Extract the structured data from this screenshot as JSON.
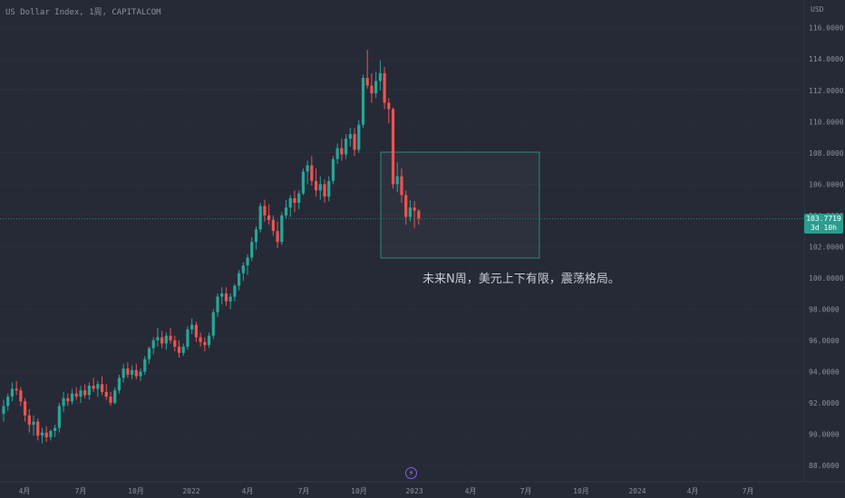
{
  "header": {
    "title": "US Dollar Index, 1周, CAPITALCOM"
  },
  "price_axis": {
    "currency": "USD"
  },
  "last_price": {
    "value": "103.7719",
    "countdown": "3d 10h"
  },
  "annotation": {
    "text": "未来N周，美元上下有限，震荡格局。"
  },
  "event_icon": {
    "name": "flash-icon",
    "glyph": "⚡"
  },
  "colors": {
    "up": "#26a69a",
    "down": "#ef5350",
    "background": "#262a36",
    "box": "#2a9d8f",
    "badge": "#2a9d8f"
  },
  "chart_data": {
    "type": "candlestick",
    "title": "US Dollar Index, 1周, CAPITALCOM",
    "ylabel": "USD",
    "ylim": [
      87.4,
      117.0
    ],
    "y_ticks": [
      "88.0000",
      "90.0000",
      "92.0000",
      "94.0000",
      "96.0000",
      "98.0000",
      "100.0000",
      "102.0000",
      "104.0000",
      "106.0000",
      "108.0000",
      "110.0000",
      "112.0000",
      "114.0000",
      "116.0000"
    ],
    "x_ticks": [
      "4月",
      "7月",
      "10月",
      "2022",
      "4月",
      "7月",
      "10月",
      "2023",
      "4月",
      "7月",
      "10月",
      "2024",
      "4月",
      "7月"
    ],
    "current_price": 103.7719,
    "candles": [
      {
        "o": 91.3,
        "h": 92.2,
        "l": 90.8,
        "c": 91.8
      },
      {
        "o": 91.8,
        "h": 92.6,
        "l": 91.5,
        "c": 92.4
      },
      {
        "o": 92.4,
        "h": 93.3,
        "l": 92.1,
        "c": 92.9
      },
      {
        "o": 92.9,
        "h": 93.4,
        "l": 92.5,
        "c": 92.8
      },
      {
        "o": 92.8,
        "h": 93.0,
        "l": 91.8,
        "c": 92.1
      },
      {
        "o": 92.1,
        "h": 92.3,
        "l": 90.8,
        "c": 91.2
      },
      {
        "o": 91.2,
        "h": 91.6,
        "l": 90.1,
        "c": 90.6
      },
      {
        "o": 90.6,
        "h": 91.2,
        "l": 89.9,
        "c": 90.8
      },
      {
        "o": 90.8,
        "h": 91.0,
        "l": 89.6,
        "c": 89.9
      },
      {
        "o": 89.9,
        "h": 90.4,
        "l": 89.4,
        "c": 90.1
      },
      {
        "o": 90.1,
        "h": 90.5,
        "l": 89.5,
        "c": 89.8
      },
      {
        "o": 89.8,
        "h": 90.3,
        "l": 89.6,
        "c": 90.2
      },
      {
        "o": 90.2,
        "h": 90.6,
        "l": 89.8,
        "c": 90.4
      },
      {
        "o": 90.4,
        "h": 92.0,
        "l": 90.1,
        "c": 91.8
      },
      {
        "o": 91.8,
        "h": 92.7,
        "l": 91.4,
        "c": 92.3
      },
      {
        "o": 92.3,
        "h": 92.6,
        "l": 91.8,
        "c": 92.1
      },
      {
        "o": 92.1,
        "h": 92.9,
        "l": 91.9,
        "c": 92.6
      },
      {
        "o": 92.6,
        "h": 93.0,
        "l": 92.2,
        "c": 92.4
      },
      {
        "o": 92.4,
        "h": 93.1,
        "l": 92.0,
        "c": 92.8
      },
      {
        "o": 92.8,
        "h": 93.2,
        "l": 92.3,
        "c": 92.5
      },
      {
        "o": 92.5,
        "h": 93.3,
        "l": 92.2,
        "c": 93.1
      },
      {
        "o": 93.1,
        "h": 93.6,
        "l": 92.7,
        "c": 92.9
      },
      {
        "o": 92.9,
        "h": 93.4,
        "l": 92.4,
        "c": 93.2
      },
      {
        "o": 93.2,
        "h": 93.7,
        "l": 92.5,
        "c": 92.7
      },
      {
        "o": 92.7,
        "h": 93.2,
        "l": 92.2,
        "c": 92.4
      },
      {
        "o": 92.4,
        "h": 92.7,
        "l": 91.8,
        "c": 92.0
      },
      {
        "o": 92.0,
        "h": 93.0,
        "l": 91.9,
        "c": 92.8
      },
      {
        "o": 92.8,
        "h": 93.8,
        "l": 92.6,
        "c": 93.6
      },
      {
        "o": 93.6,
        "h": 94.5,
        "l": 93.3,
        "c": 94.2
      },
      {
        "o": 94.2,
        "h": 94.6,
        "l": 93.6,
        "c": 93.8
      },
      {
        "o": 93.8,
        "h": 94.4,
        "l": 93.5,
        "c": 94.1
      },
      {
        "o": 94.1,
        "h": 94.5,
        "l": 93.5,
        "c": 93.7
      },
      {
        "o": 93.7,
        "h": 94.2,
        "l": 93.4,
        "c": 94.0
      },
      {
        "o": 94.0,
        "h": 95.0,
        "l": 93.8,
        "c": 94.8
      },
      {
        "o": 94.8,
        "h": 95.6,
        "l": 94.5,
        "c": 95.5
      },
      {
        "o": 95.5,
        "h": 96.2,
        "l": 95.1,
        "c": 96.0
      },
      {
        "o": 96.0,
        "h": 96.8,
        "l": 95.6,
        "c": 96.2
      },
      {
        "o": 96.2,
        "h": 96.6,
        "l": 95.5,
        "c": 95.8
      },
      {
        "o": 95.8,
        "h": 96.5,
        "l": 95.4,
        "c": 96.3
      },
      {
        "o": 96.3,
        "h": 96.8,
        "l": 95.8,
        "c": 96.0
      },
      {
        "o": 96.0,
        "h": 96.3,
        "l": 95.3,
        "c": 95.6
      },
      {
        "o": 95.6,
        "h": 96.0,
        "l": 94.9,
        "c": 95.2
      },
      {
        "o": 95.2,
        "h": 95.8,
        "l": 95.0,
        "c": 95.6
      },
      {
        "o": 95.6,
        "h": 96.9,
        "l": 95.4,
        "c": 96.7
      },
      {
        "o": 96.7,
        "h": 97.4,
        "l": 96.4,
        "c": 97.0
      },
      {
        "o": 97.0,
        "h": 97.2,
        "l": 95.9,
        "c": 96.2
      },
      {
        "o": 96.2,
        "h": 96.5,
        "l": 95.6,
        "c": 95.9
      },
      {
        "o": 95.9,
        "h": 96.2,
        "l": 95.3,
        "c": 95.7
      },
      {
        "o": 95.7,
        "h": 96.5,
        "l": 95.5,
        "c": 96.3
      },
      {
        "o": 96.3,
        "h": 98.0,
        "l": 96.1,
        "c": 97.8
      },
      {
        "o": 97.8,
        "h": 99.0,
        "l": 97.5,
        "c": 98.8
      },
      {
        "o": 98.8,
        "h": 99.4,
        "l": 98.3,
        "c": 99.0
      },
      {
        "o": 99.0,
        "h": 99.4,
        "l": 98.2,
        "c": 98.5
      },
      {
        "o": 98.5,
        "h": 99.0,
        "l": 98.0,
        "c": 98.8
      },
      {
        "o": 98.8,
        "h": 99.6,
        "l": 98.5,
        "c": 99.5
      },
      {
        "o": 99.5,
        "h": 100.5,
        "l": 99.2,
        "c": 100.3
      },
      {
        "o": 100.3,
        "h": 101.0,
        "l": 99.8,
        "c": 100.8
      },
      {
        "o": 100.8,
        "h": 101.5,
        "l": 100.2,
        "c": 101.3
      },
      {
        "o": 101.3,
        "h": 102.6,
        "l": 101.1,
        "c": 102.3
      },
      {
        "o": 102.3,
        "h": 103.3,
        "l": 101.8,
        "c": 103.1
      },
      {
        "o": 103.1,
        "h": 104.8,
        "l": 102.9,
        "c": 104.6
      },
      {
        "o": 104.6,
        "h": 105.0,
        "l": 103.6,
        "c": 104.0
      },
      {
        "o": 104.0,
        "h": 104.7,
        "l": 103.4,
        "c": 103.7
      },
      {
        "o": 103.7,
        "h": 104.0,
        "l": 102.7,
        "c": 103.0
      },
      {
        "o": 103.0,
        "h": 103.6,
        "l": 101.9,
        "c": 102.3
      },
      {
        "o": 102.3,
        "h": 104.2,
        "l": 102.1,
        "c": 104.0
      },
      {
        "o": 104.0,
        "h": 105.0,
        "l": 103.8,
        "c": 104.5
      },
      {
        "o": 104.5,
        "h": 105.3,
        "l": 103.9,
        "c": 105.1
      },
      {
        "o": 105.1,
        "h": 105.6,
        "l": 104.2,
        "c": 104.8
      },
      {
        "o": 104.8,
        "h": 105.6,
        "l": 104.4,
        "c": 105.4
      },
      {
        "o": 105.4,
        "h": 107.0,
        "l": 105.3,
        "c": 106.8
      },
      {
        "o": 106.8,
        "h": 107.5,
        "l": 106.0,
        "c": 107.2
      },
      {
        "o": 107.2,
        "h": 107.8,
        "l": 105.9,
        "c": 106.2
      },
      {
        "o": 106.2,
        "h": 107.0,
        "l": 105.2,
        "c": 105.6
      },
      {
        "o": 105.6,
        "h": 106.5,
        "l": 105.0,
        "c": 106.0
      },
      {
        "o": 106.0,
        "h": 106.3,
        "l": 104.8,
        "c": 105.2
      },
      {
        "o": 105.2,
        "h": 106.5,
        "l": 104.9,
        "c": 106.2
      },
      {
        "o": 106.2,
        "h": 107.8,
        "l": 106.0,
        "c": 107.6
      },
      {
        "o": 107.6,
        "h": 108.6,
        "l": 107.3,
        "c": 108.3
      },
      {
        "o": 108.3,
        "h": 108.9,
        "l": 107.5,
        "c": 107.9
      },
      {
        "o": 107.9,
        "h": 109.2,
        "l": 107.6,
        "c": 108.9
      },
      {
        "o": 108.9,
        "h": 109.6,
        "l": 108.4,
        "c": 109.2
      },
      {
        "o": 109.2,
        "h": 109.6,
        "l": 107.8,
        "c": 108.2
      },
      {
        "o": 108.2,
        "h": 110.1,
        "l": 108.0,
        "c": 109.8
      },
      {
        "o": 109.8,
        "h": 113.0,
        "l": 109.6,
        "c": 112.8
      },
      {
        "o": 112.8,
        "h": 114.6,
        "l": 112.1,
        "c": 112.3
      },
      {
        "o": 112.3,
        "h": 113.1,
        "l": 111.2,
        "c": 111.8
      },
      {
        "o": 111.8,
        "h": 113.2,
        "l": 111.5,
        "c": 112.6
      },
      {
        "o": 112.6,
        "h": 113.9,
        "l": 112.0,
        "c": 113.1
      },
      {
        "o": 113.1,
        "h": 113.5,
        "l": 110.8,
        "c": 111.2
      },
      {
        "o": 111.2,
        "h": 111.5,
        "l": 109.9,
        "c": 110.8
      },
      {
        "o": 110.8,
        "h": 110.9,
        "l": 105.7,
        "c": 106.0
      },
      {
        "o": 106.0,
        "h": 107.4,
        "l": 105.5,
        "c": 106.5
      },
      {
        "o": 106.5,
        "h": 107.0,
        "l": 104.8,
        "c": 105.3
      },
      {
        "o": 105.3,
        "h": 105.6,
        "l": 103.4,
        "c": 103.9
      },
      {
        "o": 103.9,
        "h": 105.0,
        "l": 103.6,
        "c": 104.5
      },
      {
        "o": 104.5,
        "h": 104.9,
        "l": 103.2,
        "c": 104.3
      },
      {
        "o": 104.3,
        "h": 104.4,
        "l": 103.4,
        "c": 103.8
      }
    ]
  }
}
